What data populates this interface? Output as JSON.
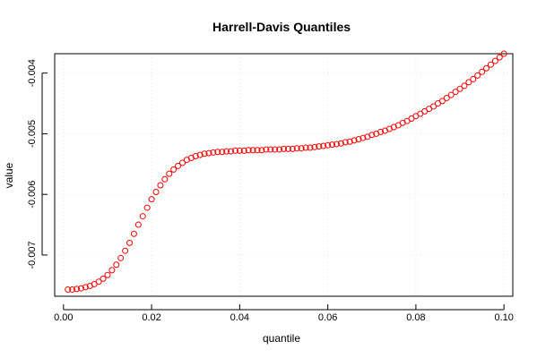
{
  "chart_data": {
    "type": "scatter",
    "title": "Harrell-Davis Quantiles",
    "xlabel": "quantile",
    "ylabel": "value",
    "xlim": [
      -0.002,
      0.102
    ],
    "ylim": [
      -0.00768,
      -0.00368
    ],
    "xticks": [
      0.0,
      0.02,
      0.04,
      0.06,
      0.08,
      0.1
    ],
    "xtick_labels": [
      "0.00",
      "0.02",
      "0.04",
      "0.06",
      "0.08",
      "0.10"
    ],
    "yticks": [
      -0.007,
      -0.006,
      -0.005,
      -0.004
    ],
    "ytick_labels": [
      "-0.007",
      "-0.006",
      "-0.005",
      "-0.004"
    ],
    "grid": true,
    "marker_color": "#ff0000",
    "marker": "open-circle",
    "x": [
      0.001,
      0.002,
      0.003,
      0.004,
      0.005,
      0.006,
      0.007,
      0.008,
      0.009,
      0.01,
      0.011,
      0.012,
      0.013,
      0.014,
      0.015,
      0.016,
      0.017,
      0.018,
      0.019,
      0.02,
      0.021,
      0.022,
      0.023,
      0.024,
      0.025,
      0.026,
      0.027,
      0.028,
      0.029,
      0.03,
      0.031,
      0.032,
      0.033,
      0.034,
      0.035,
      0.036,
      0.037,
      0.038,
      0.039,
      0.04,
      0.041,
      0.042,
      0.043,
      0.044,
      0.045,
      0.046,
      0.047,
      0.048,
      0.049,
      0.05,
      0.051,
      0.052,
      0.053,
      0.054,
      0.055,
      0.056,
      0.057,
      0.058,
      0.059,
      0.06,
      0.061,
      0.062,
      0.063,
      0.064,
      0.065,
      0.066,
      0.067,
      0.068,
      0.069,
      0.07,
      0.071,
      0.072,
      0.073,
      0.074,
      0.075,
      0.076,
      0.077,
      0.078,
      0.079,
      0.08,
      0.081,
      0.082,
      0.083,
      0.084,
      0.085,
      0.086,
      0.087,
      0.088,
      0.089,
      0.09,
      0.091,
      0.092,
      0.093,
      0.094,
      0.095,
      0.096,
      0.097,
      0.098,
      0.099,
      0.1
    ],
    "y": [
      -0.00757,
      -0.00757,
      -0.00756,
      -0.00755,
      -0.00753,
      -0.00751,
      -0.00748,
      -0.00744,
      -0.00739,
      -0.00733,
      -0.00725,
      -0.00716,
      -0.00705,
      -0.00693,
      -0.0068,
      -0.00665,
      -0.0065,
      -0.00636,
      -0.00622,
      -0.00608,
      -0.00596,
      -0.00585,
      -0.00575,
      -0.00566,
      -0.00559,
      -0.00553,
      -0.00548,
      -0.00543,
      -0.0054,
      -0.00537,
      -0.00535,
      -0.00533,
      -0.00532,
      -0.00531,
      -0.0053,
      -0.0053,
      -0.00529,
      -0.00529,
      -0.00528,
      -0.00528,
      -0.00528,
      -0.00527,
      -0.00527,
      -0.00527,
      -0.00527,
      -0.00526,
      -0.00526,
      -0.00526,
      -0.00526,
      -0.00525,
      -0.00525,
      -0.00525,
      -0.00524,
      -0.00524,
      -0.00523,
      -0.00523,
      -0.00522,
      -0.00521,
      -0.0052,
      -0.00519,
      -0.00518,
      -0.00517,
      -0.00516,
      -0.00514,
      -0.00513,
      -0.00511,
      -0.00509,
      -0.00507,
      -0.00505,
      -0.00502,
      -0.005,
      -0.00497,
      -0.00495,
      -0.00492,
      -0.00489,
      -0.00486,
      -0.00482,
      -0.00479,
      -0.00475,
      -0.00471,
      -0.00467,
      -0.00463,
      -0.00459,
      -0.00455,
      -0.0045,
      -0.00446,
      -0.00441,
      -0.00436,
      -0.00431,
      -0.00426,
      -0.00421,
      -0.00415,
      -0.0041,
      -0.00404,
      -0.00398,
      -0.00392,
      -0.00386,
      -0.0038,
      -0.00374,
      -0.00368
    ]
  }
}
